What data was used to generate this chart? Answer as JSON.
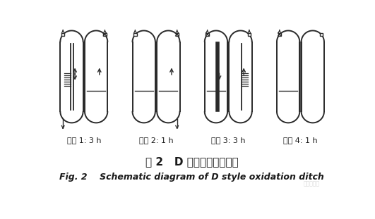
{
  "title_cn": "图 2   D 型氧化沟工作示意",
  "title_en": "Fig. 2    Schematic diagram of D style oxidation ditch",
  "background_color": "#ffffff",
  "stages": [
    {
      "label": "阶段 1: 3 h",
      "left_center_bar": true,
      "left_center_bar_thick": false,
      "left_aerator": true,
      "left_aerator_side": "left",
      "left_arrow_up": true,
      "left_arrow_down": true,
      "left_water_level": false,
      "right_center_bar": false,
      "right_center_bar_thick": false,
      "right_aerator": false,
      "right_arrow_up": true,
      "right_arrow_down": false,
      "right_water_level": true,
      "left_gate_cross": false,
      "right_gate_cross": true,
      "inlet_left_bottom": true,
      "outlet_right_bottom": false,
      "inlet_right_bottom": false
    },
    {
      "label": "阶段 2: 1 h",
      "left_center_bar": false,
      "left_center_bar_thick": false,
      "left_aerator": false,
      "left_aerator_side": "none",
      "left_arrow_up": false,
      "left_arrow_down": false,
      "left_water_level": true,
      "right_center_bar": false,
      "right_center_bar_thick": false,
      "right_aerator": false,
      "right_arrow_up": true,
      "right_arrow_down": false,
      "right_water_level": true,
      "left_gate_cross": false,
      "right_gate_cross": true,
      "inlet_left_bottom": false,
      "outlet_right_bottom": true,
      "inlet_right_bottom": false
    },
    {
      "label": "阶段 3: 3 h",
      "left_center_bar": true,
      "left_center_bar_thick": true,
      "left_aerator": false,
      "left_aerator_side": "none",
      "left_arrow_up": false,
      "left_arrow_down": true,
      "left_water_level": true,
      "right_center_bar": false,
      "right_center_bar_thick": false,
      "right_aerator": true,
      "right_aerator_side": "right",
      "right_arrow_up": true,
      "right_arrow_down": false,
      "right_water_level": false,
      "left_gate_cross": true,
      "right_gate_cross": false,
      "inlet_left_bottom": false,
      "outlet_right_bottom": false,
      "inlet_right_bottom": false
    },
    {
      "label": "阶段 4: 1 h",
      "left_center_bar": false,
      "left_center_bar_thick": false,
      "left_aerator": false,
      "left_aerator_side": "none",
      "left_arrow_up": false,
      "left_arrow_down": false,
      "left_water_level": true,
      "right_center_bar": false,
      "right_center_bar_thick": false,
      "right_aerator": false,
      "right_arrow_up": false,
      "right_arrow_down": false,
      "right_water_level": false,
      "left_gate_cross": true,
      "right_gate_cross": false,
      "inlet_left_bottom": false,
      "outlet_right_bottom": false,
      "inlet_right_bottom": false
    }
  ],
  "line_color": "#2a2a2a",
  "water_color": "#555555",
  "arrow_color": "#2a2a2a",
  "text_color": "#1a1a1a",
  "title_cn_fontsize": 11,
  "title_en_fontsize": 9,
  "label_fontsize": 8
}
